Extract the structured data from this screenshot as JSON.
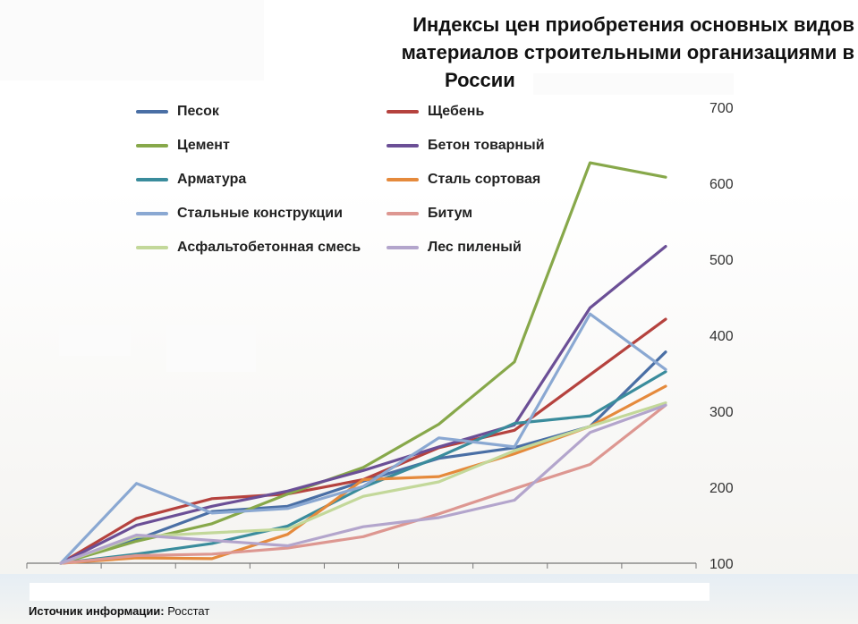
{
  "title_lines": [
    "Индексы цен приобретения основных видов",
    "материалов строительными организациями в",
    "России"
  ],
  "source_label": "Источник информации:",
  "source_value": "Росстат",
  "chart_data": {
    "type": "line",
    "title": "Индексы цен приобретения основных видов материалов строительными организациями в России",
    "xlabel": "",
    "ylabel": "",
    "ylim": [
      100,
      700
    ],
    "y_ticks": [
      100,
      200,
      300,
      400,
      500,
      600,
      700
    ],
    "y_axis_position": "right",
    "x_points": 9,
    "legend_placement": "top-left",
    "grid": false,
    "series": [
      {
        "name": "Песок",
        "color": "#4a6fa5",
        "values": [
          100,
          131,
          168,
          175,
          208,
          238,
          252,
          280,
          378
        ]
      },
      {
        "name": "Щебень",
        "color": "#b5423e",
        "values": [
          100,
          159,
          185,
          191,
          210,
          252,
          275,
          348,
          421
        ]
      },
      {
        "name": "Цемент",
        "color": "#87a84a",
        "values": [
          100,
          129,
          152,
          191,
          226,
          283,
          365,
          627,
          608
        ]
      },
      {
        "name": "Бетон товарный",
        "color": "#6b4f96",
        "values": [
          100,
          150,
          175,
          195,
          222,
          253,
          282,
          436,
          517
        ]
      },
      {
        "name": "Арматура",
        "color": "#3a8c9c",
        "values": [
          100,
          112,
          126,
          149,
          200,
          240,
          284,
          294,
          352
        ]
      },
      {
        "name": "Сталь сортовая",
        "color": "#e58a3c",
        "values": [
          100,
          107,
          106,
          138,
          210,
          214,
          244,
          280,
          333
        ]
      },
      {
        "name": "Стальные конструкции",
        "color": "#8aa8d2",
        "values": [
          100,
          205,
          166,
          172,
          201,
          265,
          253,
          428,
          355
        ]
      },
      {
        "name": "Битум",
        "color": "#dd9791",
        "values": [
          100,
          110,
          112,
          120,
          135,
          165,
          198,
          230,
          308
        ]
      },
      {
        "name": "Асфальтобетонная смесь",
        "color": "#c3d89a",
        "values": [
          100,
          135,
          140,
          145,
          188,
          207,
          248,
          280,
          311
        ]
      },
      {
        "name": "Лес пиленый",
        "color": "#b3a5cc",
        "values": [
          100,
          137,
          130,
          123,
          148,
          160,
          183,
          272,
          308
        ]
      }
    ]
  }
}
